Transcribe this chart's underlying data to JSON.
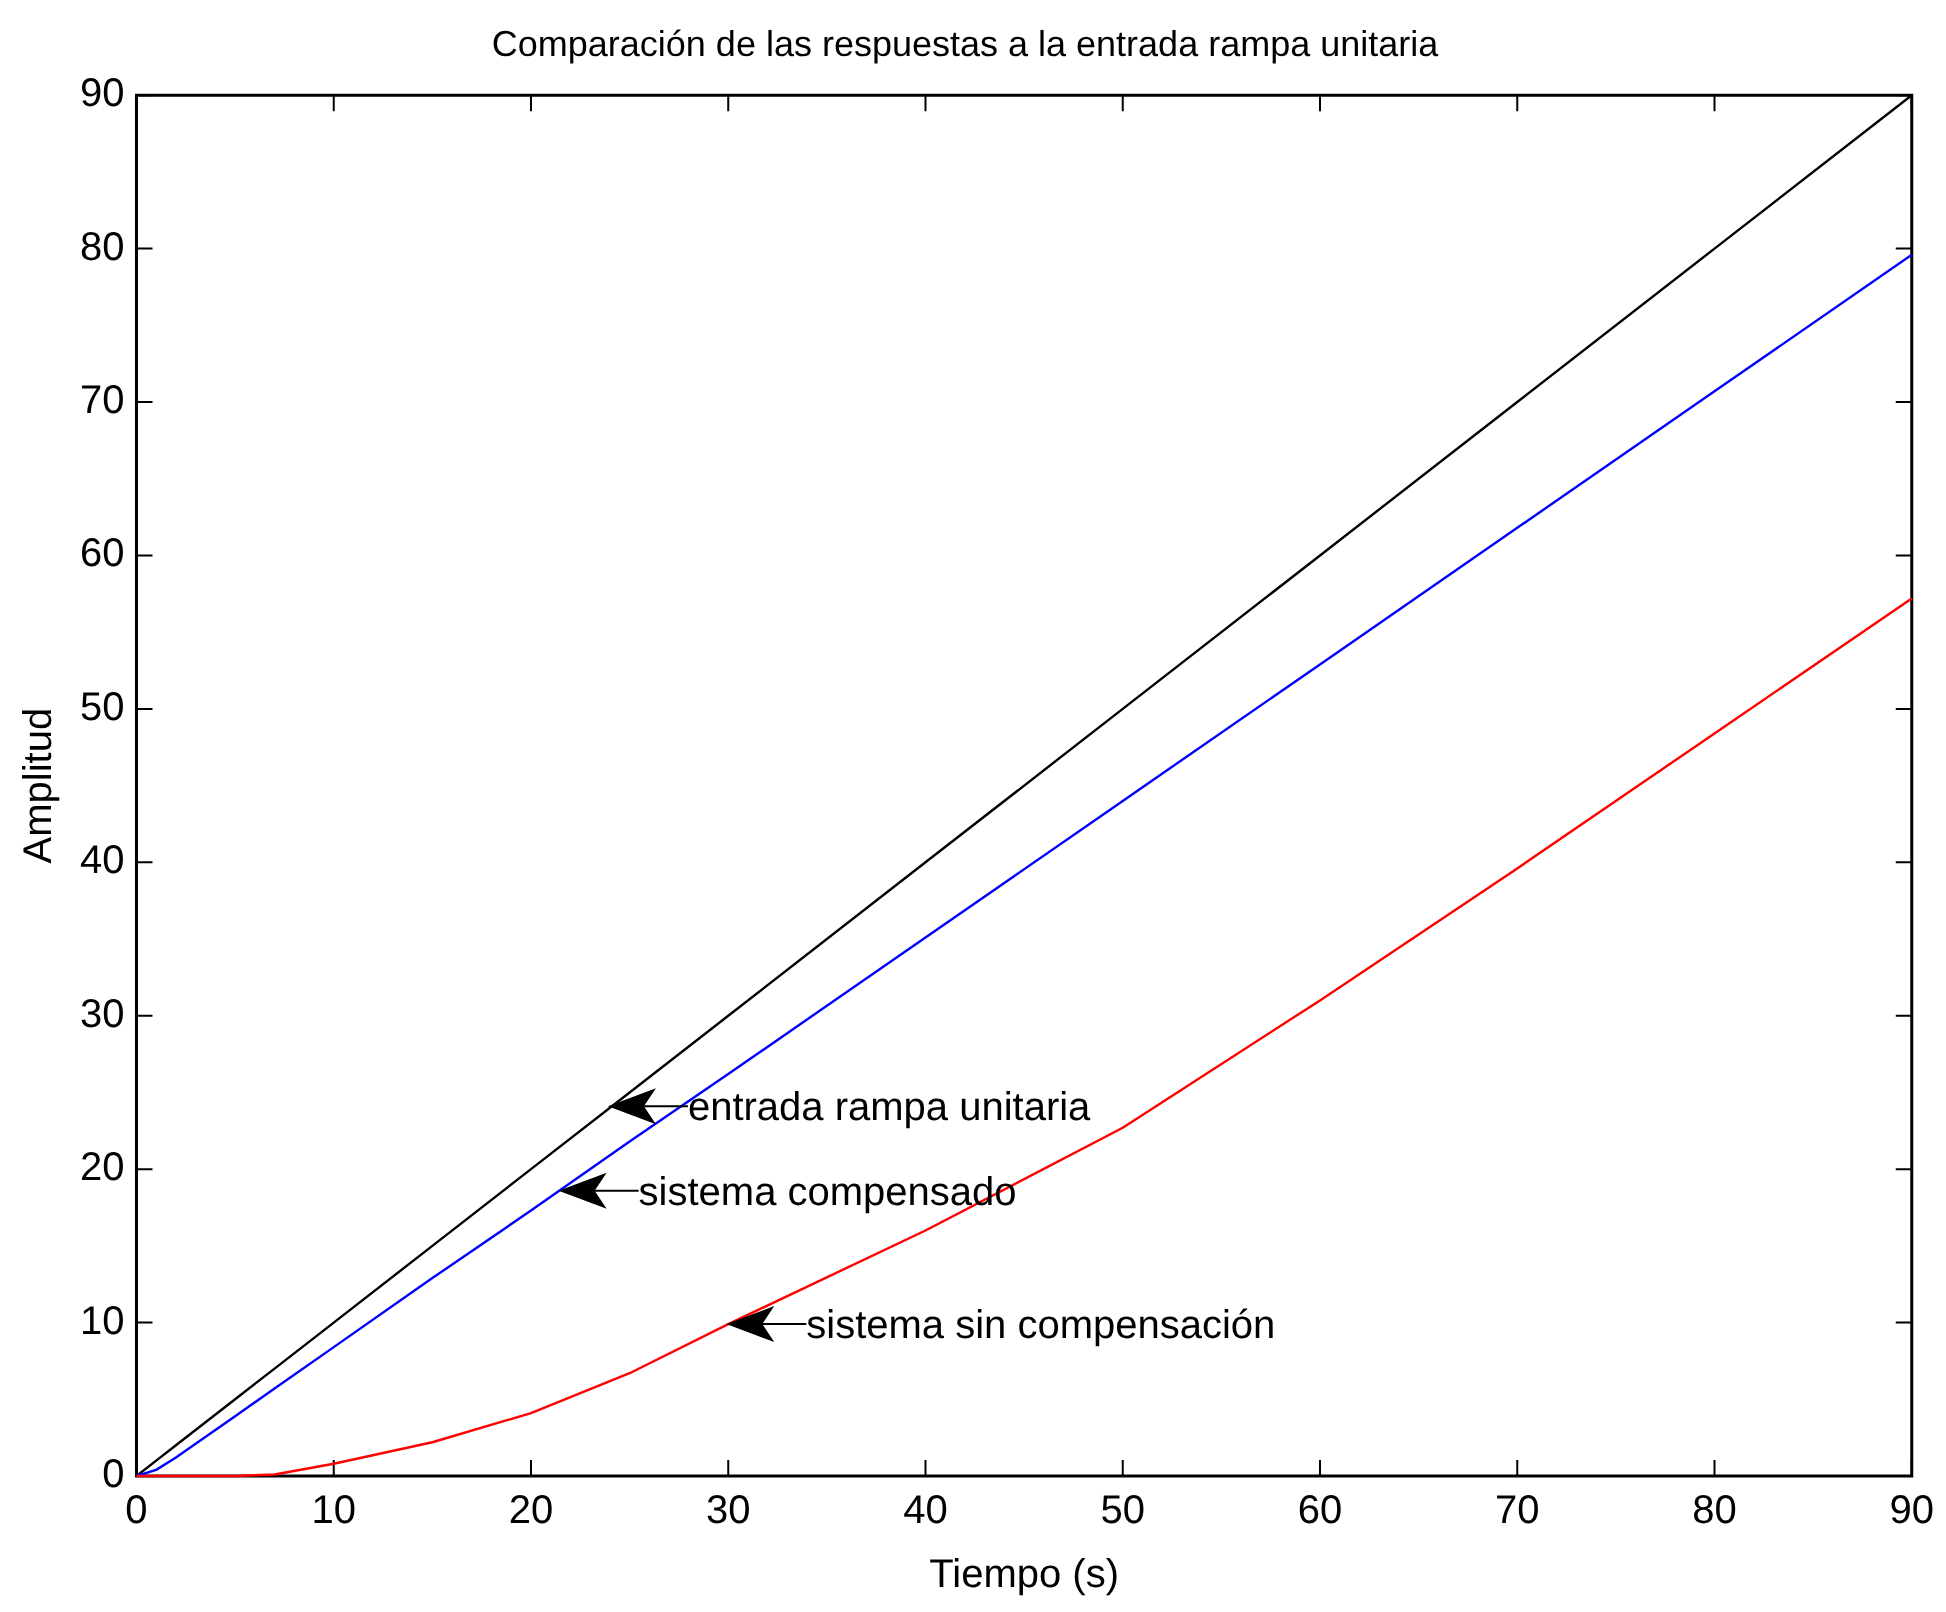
{
  "chart_data": {
    "type": "line",
    "title": "Comparación de las respuestas a la entrada rampa unitaria",
    "xlabel": "Tiempo (s)",
    "ylabel": "Amplitud",
    "x": [
      0,
      1,
      2,
      5,
      7,
      10,
      15,
      20,
      25,
      30,
      40,
      50,
      60,
      70,
      80,
      90
    ],
    "series": [
      {
        "color": "#000000",
        "values": [
          0,
          1,
          2,
          5,
          7,
          10,
          15,
          20,
          25,
          30,
          40,
          50,
          60,
          70,
          80,
          90
        ]
      },
      {
        "color": "#0000ff",
        "values": [
          0,
          0.4,
          1.2,
          3.9,
          5.7,
          8.4,
          12.9,
          17.3,
          21.8,
          26.2,
          35.1,
          44,
          52.9,
          61.8,
          70.7,
          79.6
        ]
      },
      {
        "color": "#ff0000",
        "values": [
          0,
          0,
          0,
          0,
          0.1,
          0.8,
          2.2,
          4.1,
          6.7,
          9.9,
          16,
          22.7,
          31,
          39.6,
          48.4,
          57.2
        ]
      }
    ],
    "xlim": [
      0,
      90
    ],
    "ylim": [
      0,
      90
    ],
    "xticks": [
      0,
      10,
      20,
      30,
      40,
      50,
      60,
      70,
      80,
      90
    ],
    "yticks": [
      0,
      10,
      20,
      30,
      40,
      50,
      60,
      70,
      80,
      90
    ],
    "grid": false,
    "legend": false,
    "marker": "none",
    "line_style": "solid",
    "annotations": [
      {
        "text": "entrada rampa unitaria",
        "x": 23.9,
        "y": 24.1
      },
      {
        "text": "sistema compensado",
        "x": 21.4,
        "y": 18.6
      },
      {
        "text": "sistema sin compensación",
        "x": 29.9,
        "y": 9.9
      }
    ]
  }
}
